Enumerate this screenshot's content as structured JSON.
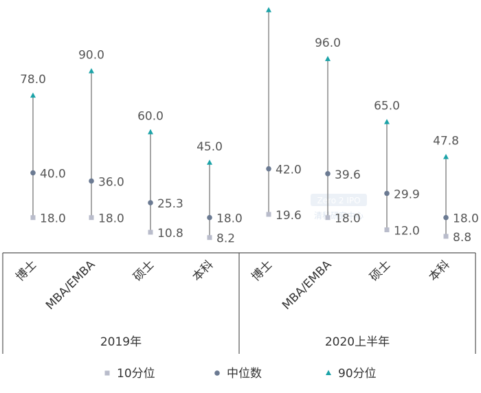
{
  "chart_data": {
    "type": "scatter",
    "description_note": "",
    "groups": [
      {
        "name": "2019年",
        "categories": [
          "博士",
          "MBA/EMBA",
          "硕士",
          "本科"
        ],
        "p10": [
          18.0,
          18.0,
          10.8,
          8.2
        ],
        "median": [
          40.0,
          36.0,
          25.3,
          18.0
        ],
        "p90": [
          78.0,
          90.0,
          60.0,
          45.0
        ]
      },
      {
        "name": "2020上半年",
        "categories": [
          "博士",
          "MBA/EMBA",
          "硕士",
          "本科"
        ],
        "p10": [
          19.6,
          18.0,
          12.0,
          8.8
        ],
        "median": [
          42.0,
          39.6,
          29.9,
          18.0
        ],
        "p90": [
          120.0,
          96.0,
          65.0,
          47.8
        ]
      }
    ],
    "series": [
      {
        "name": "10分位",
        "key": "p10",
        "color": "#b9bccb",
        "marker": "square"
      },
      {
        "name": "中位数",
        "key": "median",
        "color": "#6b7a92",
        "marker": "circle"
      },
      {
        "name": "90分位",
        "key": "p90",
        "color": "#1ba3a8",
        "marker": "triangle"
      }
    ],
    "stem_color": "#777777",
    "ylim": [
      0,
      125
    ],
    "grid": false,
    "legend_position": "bottom",
    "watermark": "Zero2IPO 清科研究中心"
  }
}
